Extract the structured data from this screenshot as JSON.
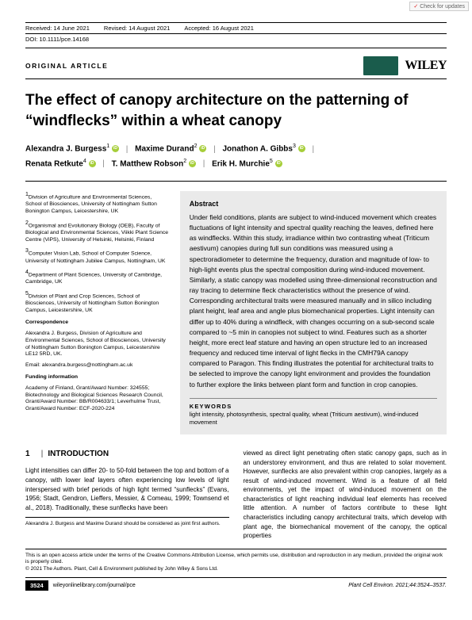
{
  "checkUpdates": "Check for updates",
  "meta": {
    "received": "Received: 14 June 2021",
    "revised": "Revised: 14 August 2021",
    "accepted": "Accepted: 16 August 2021"
  },
  "doi": "DOI: 10.1111/pce.14168",
  "articleType": "ORIGINAL ARTICLE",
  "publisher": "WILEY",
  "title": "The effect of canopy architecture on the patterning of “windflecks” within a wheat canopy",
  "authors": [
    {
      "name": "Alexandra J. Burgess",
      "aff": "1"
    },
    {
      "name": "Maxime Durand",
      "aff": "2"
    },
    {
      "name": "Jonathon A. Gibbs",
      "aff": "3"
    },
    {
      "name": "Renata Retkute",
      "aff": "4"
    },
    {
      "name": "T. Matthew Robson",
      "aff": "2"
    },
    {
      "name": "Erik H. Murchie",
      "aff": "5"
    }
  ],
  "affiliations": [
    "Division of Agriculture and Environmental Sciences, School of Biosciences, University of Nottingham Sutton Bonington Campus, Leicestershire, UK",
    "Organismal and Evolutionary Biology (OEB), Faculty of Biological and Environmental Sciences, Viikki Plant Science Centre (ViPS), University of Helsinki, Helsinki, Finland",
    "Computer Vision Lab, School of Computer Science, University of Nottingham Jubilee Campus, Nottingham, UK",
    "Department of Plant Sciences, University of Cambridge, Cambridge, UK",
    "Division of Plant and Crop Sciences, School of Biosciences, University of Nottingham Sutton Bonington Campus, Leicestershire, UK"
  ],
  "corr": {
    "head": "Correspondence",
    "body": "Alexandra J. Burgess, Division of Agriculture and Environmental Sciences, School of Biosciences, University of Nottingham Sutton Bonington Campus, Leicestershire LE12 5RD, UK.",
    "email": "Email: alexandra.burgess@nottingham.ac.uk"
  },
  "funding": {
    "head": "Funding information",
    "body": "Academy of Finland, Grant/Award Number: 324555; Biotechnology and Biological Sciences Research Council, Grant/Award Number: BB/R004633/1; Leverhulme Trust, Grant/Award Number: ECF-2020-224"
  },
  "abstract": {
    "head": "Abstract",
    "body": "Under field conditions, plants are subject to wind-induced movement which creates fluctuations of light intensity and spectral quality reaching the leaves, defined here as windflecks. Within this study, irradiance within two contrasting wheat (Triticum aestivum) canopies during full sun conditions was measured using a spectroradiometer to determine the frequency, duration and magnitude of low- to high-light events plus the spectral composition during wind-induced movement. Similarly, a static canopy was modelled using three-dimensional reconstruction and ray tracing to determine fleck characteristics without the presence of wind. Corresponding architectural traits were measured manually and in silico including plant height, leaf area and angle plus biomechanical properties. Light intensity can differ up to 40% during a windfleck, with changes occurring on a sub-second scale compared to ~5 min in canopies not subject to wind. Features such as a shorter height, more erect leaf stature and having an open structure led to an increased frequency and reduced time interval of light flecks in the CMH79A canopy compared to Paragon. This finding illustrates the potential for architectural traits to be selected to improve the canopy light environment and provides the foundation to further explore the links between plant form and function in crop canopies."
  },
  "keywords": {
    "head": "KEYWORDS",
    "body": "light intensity, photosynthesis, spectral quality, wheat (Triticum aestivum), wind-induced movement"
  },
  "intro": {
    "head": "INTRODUCTION",
    "num": "1",
    "left": "Light intensities can differ 20- to 50-fold between the top and bottom of a canopy, with lower leaf layers often experiencing low levels of light interspersed with brief periods of high light termed “sunflecks” (Evans, 1956; Stadt, Gendron, Lieffers, Messier, & Comeau, 1999; Townsend et al., 2018). Traditionally, these sunflecks have been",
    "right": "viewed as direct light penetrating often static canopy gaps, such as in an understorey environment, and thus are related to solar movement. However, sunflecks are also prevalent within crop canopies, largely as a result of wind-induced movement. Wind is a feature of all field environments, yet the impact of wind-induced movement on the characteristics of light reaching individual leaf elements has received little attention. A number of factors contribute to these light characteristics including canopy architectural traits, which develop with plant age, the biomechanical movement of the canopy, the optical properties"
  },
  "jointFirst": "Alexandra J. Burgess and Maxime Durand should be considered as joint first authors.",
  "license1": "This is an open access article under the terms of the Creative Commons Attribution License, which permits use, distribution and reproduction in any medium, provided the original work is properly cited.",
  "license2": "© 2021 The Authors. Plant, Cell & Environment published by John Wiley & Sons Ltd.",
  "footer": {
    "page": "3524",
    "url": "wileyonlinelibrary.com/journal/pce",
    "cite": "Plant Cell Environ. 2021;44:3524–3537."
  }
}
